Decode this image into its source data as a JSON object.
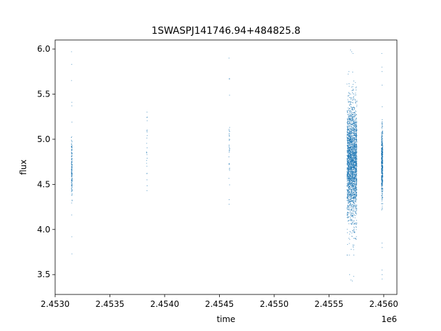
{
  "chart_data": {
    "type": "scatter",
    "title": "1SWASPJ141746.94+484825.8",
    "xlabel": "time",
    "ylabel": "flux",
    "x_offset_label": "1e6",
    "xlim": [
      2453000,
      2456120
    ],
    "ylim": [
      3.28,
      6.1
    ],
    "x_ticks": [
      2453000,
      2453500,
      2454000,
      2454500,
      2455000,
      2455500,
      2456000
    ],
    "x_tick_labels": [
      "2.4530",
      "2.4535",
      "2.4540",
      "2.4545",
      "2.4550",
      "2.4555",
      "2.4560"
    ],
    "y_ticks": [
      3.5,
      4.0,
      4.5,
      5.0,
      5.5,
      6.0
    ],
    "y_tick_labels": [
      "3.5",
      "4.0",
      "4.5",
      "5.0",
      "5.5",
      "6.0"
    ],
    "grid": false,
    "marker_color": "#1f77b4",
    "observing_seasons": [
      {
        "x_center": 2453152,
        "x_spread": 4,
        "n_points": 150,
        "y_mean": 4.68,
        "y_sd": 0.16,
        "outliers": [
          [
            2453150,
            5.97
          ],
          [
            2453151,
            5.83
          ],
          [
            2453150,
            5.65
          ],
          [
            2453152,
            5.41
          ],
          [
            2453152,
            5.37
          ],
          [
            2453153,
            5.19
          ],
          [
            2453152,
            3.92
          ],
          [
            2453153,
            3.73
          ],
          [
            2453151,
            4.16
          ]
        ]
      },
      {
        "x_center": 2453838,
        "x_spread": 3,
        "n_points": 20,
        "y_mean": 4.9,
        "y_sd": 0.18,
        "outliers": [
          [
            2453838,
            5.3
          ],
          [
            2453838,
            5.24
          ],
          [
            2453838,
            4.55
          ],
          [
            2453838,
            4.43
          ]
        ]
      },
      {
        "x_center": 2454590,
        "x_spread": 4,
        "n_points": 30,
        "y_mean": 4.95,
        "y_sd": 0.25,
        "outliers": [
          [
            2454587,
            5.9
          ],
          [
            2454588,
            5.67
          ],
          [
            2454589,
            4.33
          ],
          [
            2454588,
            4.28
          ]
        ]
      },
      {
        "x_center": 2455710,
        "x_spread": 45,
        "n_points": 2600,
        "y_mean": 4.74,
        "y_sd": 0.32,
        "outliers": [
          [
            2455697,
            5.99
          ],
          [
            2455708,
            5.97
          ],
          [
            2455719,
            5.95
          ],
          [
            2455688,
            3.5
          ],
          [
            2455700,
            3.44
          ],
          [
            2455713,
            3.43
          ],
          [
            2455725,
            3.48
          ]
        ]
      },
      {
        "x_center": 2455985,
        "x_spread": 6,
        "n_points": 500,
        "y_mean": 4.72,
        "y_sd": 0.2,
        "outliers": [
          [
            2455982,
            5.95
          ],
          [
            2455983,
            5.8
          ],
          [
            2455984,
            5.75
          ],
          [
            2455985,
            5.6
          ],
          [
            2455984,
            3.85
          ],
          [
            2455985,
            3.8
          ],
          [
            2455984,
            3.55
          ],
          [
            2455985,
            3.5
          ],
          [
            2455985,
            3.45
          ]
        ]
      }
    ]
  }
}
